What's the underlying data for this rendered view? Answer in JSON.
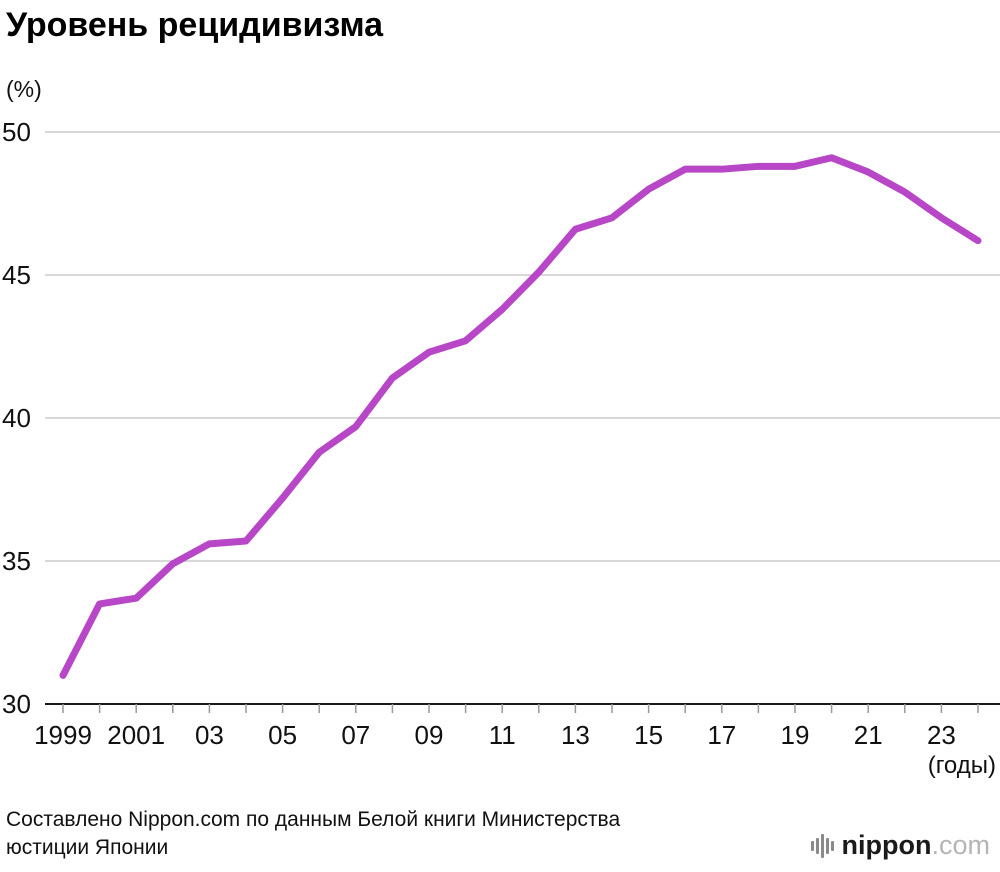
{
  "header": {
    "title": "Уровень рецидивизма"
  },
  "chart_data": {
    "type": "line",
    "title": "Уровень рецидивизма",
    "ylabel": "(%)",
    "xlabel": "(годы)",
    "ylim": [
      30,
      50
    ],
    "y_ticks": [
      50,
      45,
      40,
      35,
      30
    ],
    "grid": true,
    "legend": "none",
    "line_color": "#b847c8",
    "x": [
      1999,
      2000,
      2001,
      2002,
      2003,
      2004,
      2005,
      2006,
      2007,
      2008,
      2009,
      2010,
      2011,
      2012,
      2013,
      2014,
      2015,
      2016,
      2017,
      2018,
      2019,
      2020,
      2021,
      2022,
      2023,
      2024
    ],
    "values": [
      31.0,
      33.5,
      33.7,
      34.9,
      35.6,
      35.7,
      37.2,
      38.8,
      39.7,
      41.4,
      42.3,
      42.7,
      43.8,
      45.1,
      46.6,
      47.0,
      48.0,
      48.7,
      48.7,
      48.8,
      48.8,
      49.1,
      48.6,
      47.9,
      47.0,
      46.2
    ],
    "x_tick_years": [
      1999,
      2001,
      2003,
      2005,
      2007,
      2009,
      2011,
      2013,
      2015,
      2017,
      2019,
      2021,
      2023
    ],
    "x_tick_labels": [
      "1999",
      "2001",
      "03",
      "05",
      "07",
      "09",
      "11",
      "13",
      "15",
      "17",
      "19",
      "21",
      "23"
    ]
  },
  "footer": {
    "source_line1": "Составлено Nippon.com по данным Белой книги Министерства",
    "source_line2": "юстиции Японии",
    "logo": {
      "word_main": "nippon",
      "word_tld": ".com"
    }
  }
}
